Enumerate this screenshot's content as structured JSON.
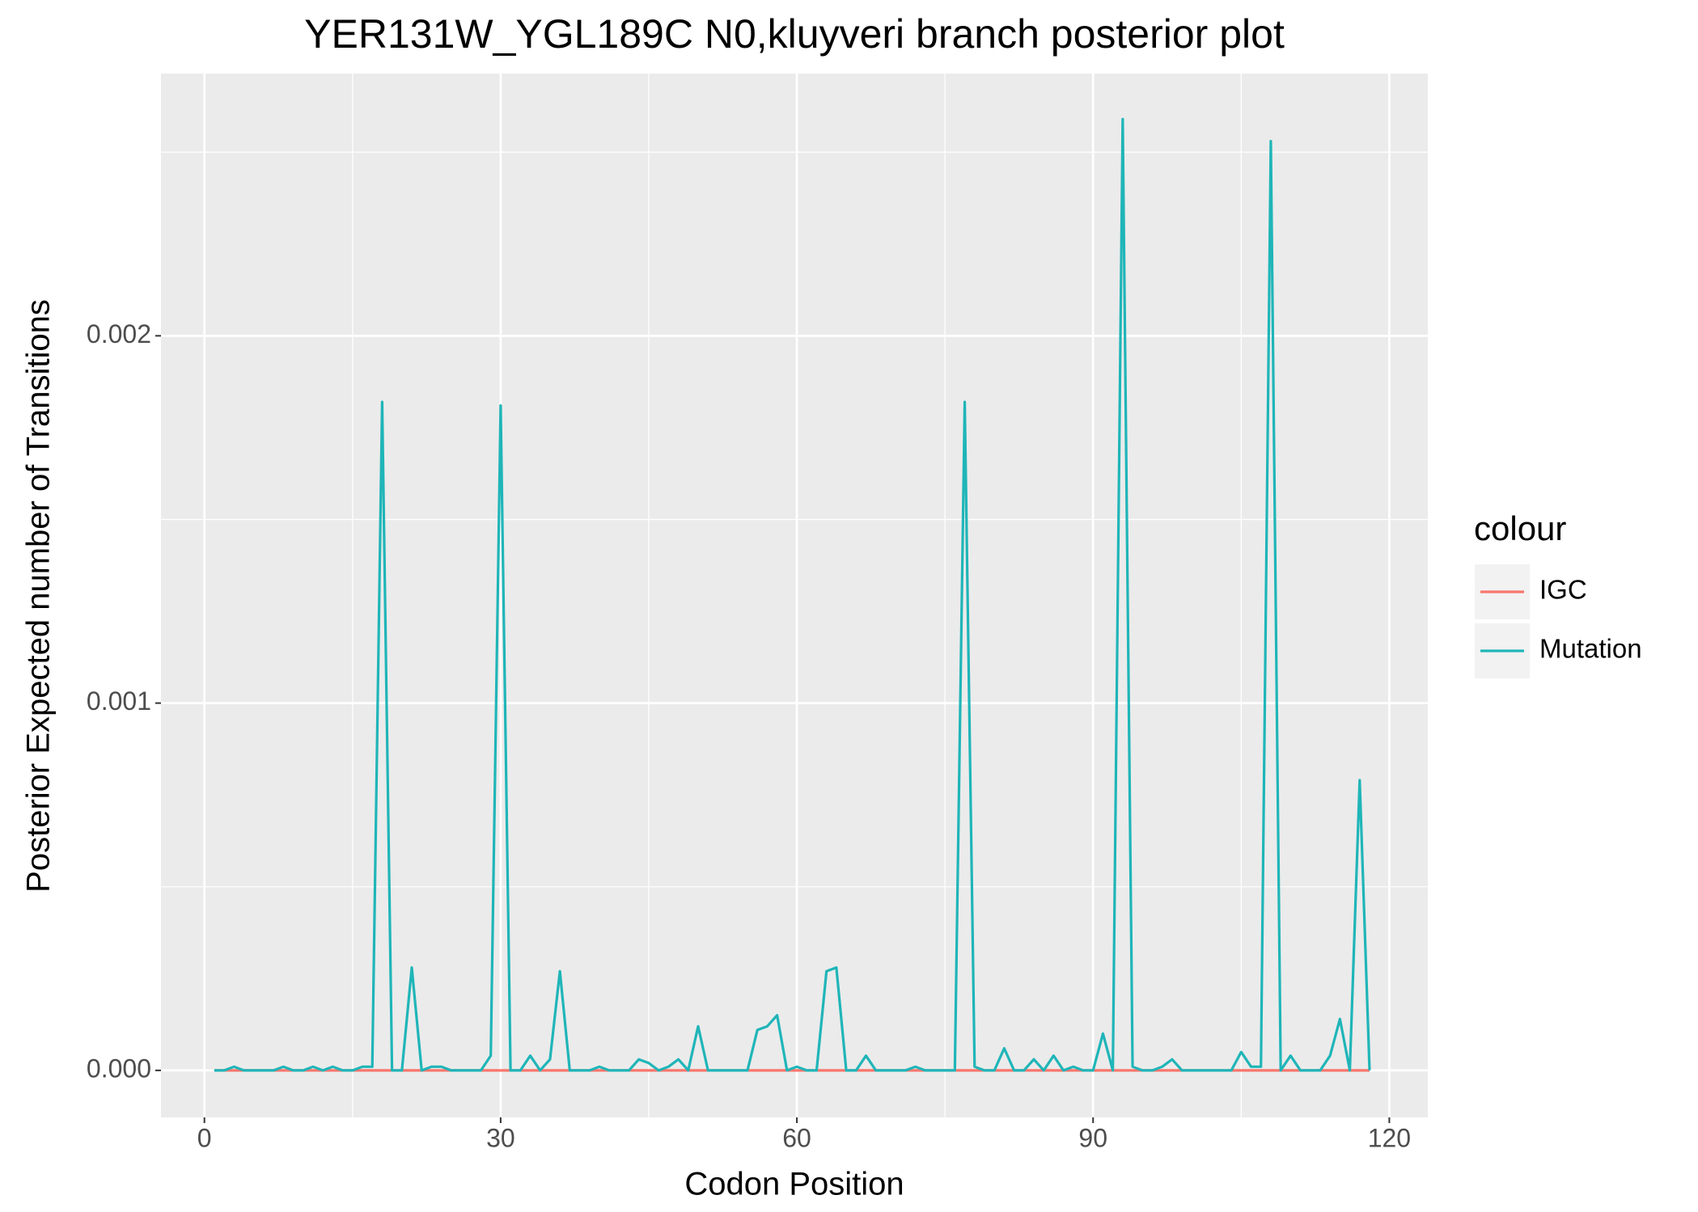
{
  "chart_data": {
    "type": "line",
    "title": "YER131W_YGL189C N0,kluyveri branch posterior plot",
    "x_label": "Codon Position",
    "y_label": "Posterior Expected number of Transitions",
    "legend_title": "colour",
    "legend_position": "right",
    "grid": true,
    "xlim": [
      -4.4,
      123.9
    ],
    "ylim": [
      -0.000128,
      0.002714
    ],
    "xticks": [
      0,
      30,
      60,
      90,
      120
    ],
    "yticks": [
      {
        "value": 0,
        "label": "0.000"
      },
      {
        "value": 0.001,
        "label": "0.001"
      },
      {
        "value": 0.002,
        "label": "0.002"
      }
    ],
    "x_minor_ticks": [
      15,
      45,
      75,
      105
    ],
    "y_minor_ticks": [
      0.0005,
      0.0015,
      0.0025
    ],
    "x": [
      1,
      2,
      3,
      4,
      5,
      6,
      7,
      8,
      9,
      10,
      11,
      12,
      13,
      14,
      15,
      16,
      17,
      18,
      19,
      20,
      21,
      22,
      23,
      24,
      25,
      26,
      27,
      28,
      29,
      30,
      31,
      32,
      33,
      34,
      35,
      36,
      37,
      38,
      39,
      40,
      41,
      42,
      43,
      44,
      45,
      46,
      47,
      48,
      49,
      50,
      51,
      52,
      53,
      54,
      55,
      56,
      57,
      58,
      59,
      60,
      61,
      62,
      63,
      64,
      65,
      66,
      67,
      68,
      69,
      70,
      71,
      72,
      73,
      74,
      75,
      76,
      77,
      78,
      79,
      80,
      81,
      82,
      83,
      84,
      85,
      86,
      87,
      88,
      89,
      90,
      91,
      92,
      93,
      94,
      95,
      96,
      97,
      98,
      99,
      100,
      101,
      102,
      103,
      104,
      105,
      106,
      107,
      108,
      109,
      110,
      111,
      112,
      113,
      114,
      115,
      116,
      117,
      118
    ],
    "series": [
      {
        "name": "IGC",
        "color": "#F8766D",
        "values": [
          0,
          0,
          0,
          0,
          0,
          0,
          0,
          0,
          0,
          0,
          0,
          0,
          0,
          0,
          0,
          0,
          0,
          0,
          0,
          0,
          0,
          0,
          0,
          0,
          0,
          0,
          0,
          0,
          0,
          0,
          0,
          0,
          0,
          0,
          0,
          0,
          0,
          0,
          0,
          0,
          0,
          0,
          0,
          0,
          0,
          0,
          0,
          0,
          0,
          0,
          0,
          0,
          0,
          0,
          0,
          0,
          0,
          0,
          0,
          0,
          0,
          0,
          0,
          0,
          0,
          0,
          0,
          0,
          0,
          0,
          0,
          0,
          0,
          0,
          0,
          0,
          0,
          0,
          0,
          0,
          0,
          0,
          0,
          0,
          0,
          0,
          0,
          0,
          0,
          0,
          0,
          0,
          0,
          0,
          0,
          0,
          0,
          0,
          0,
          0,
          0,
          0,
          0,
          0,
          0,
          0,
          0,
          0,
          0,
          0,
          0,
          0,
          0,
          0,
          0,
          0,
          0,
          0
        ]
      },
      {
        "name": "Mutation",
        "color": "#1FB5B8",
        "values": [
          0,
          0,
          1e-05,
          0,
          0,
          0,
          0,
          1e-05,
          0,
          0,
          1e-05,
          0,
          1e-05,
          0,
          0,
          1e-05,
          1e-05,
          0.00182,
          0,
          0,
          0.00028,
          0,
          1e-05,
          1e-05,
          0,
          0,
          0,
          0,
          4e-05,
          0.00181,
          0,
          0,
          4e-05,
          0,
          3e-05,
          0.00027,
          0,
          0,
          0,
          1e-05,
          0,
          0,
          0,
          3e-05,
          2e-05,
          0,
          1e-05,
          3e-05,
          0,
          0.00012,
          0,
          0,
          0,
          0,
          0,
          0.00011,
          0.00012,
          0.00015,
          0,
          1e-05,
          0,
          0,
          0.00027,
          0.00028,
          0,
          0,
          4e-05,
          0,
          0,
          0,
          0,
          1e-05,
          0,
          0,
          0,
          0,
          0.00182,
          1e-05,
          0,
          0,
          6e-05,
          0,
          0,
          3e-05,
          0,
          4e-05,
          0,
          1e-05,
          0,
          0,
          0.0001,
          0,
          0.00259,
          1e-05,
          0,
          0,
          1e-05,
          3e-05,
          0,
          0,
          0,
          0,
          0,
          0,
          5e-05,
          1e-05,
          1e-05,
          0.00253,
          0,
          4e-05,
          0,
          0,
          0,
          4e-05,
          0.00014,
          0,
          0.00079,
          0
        ]
      }
    ]
  }
}
